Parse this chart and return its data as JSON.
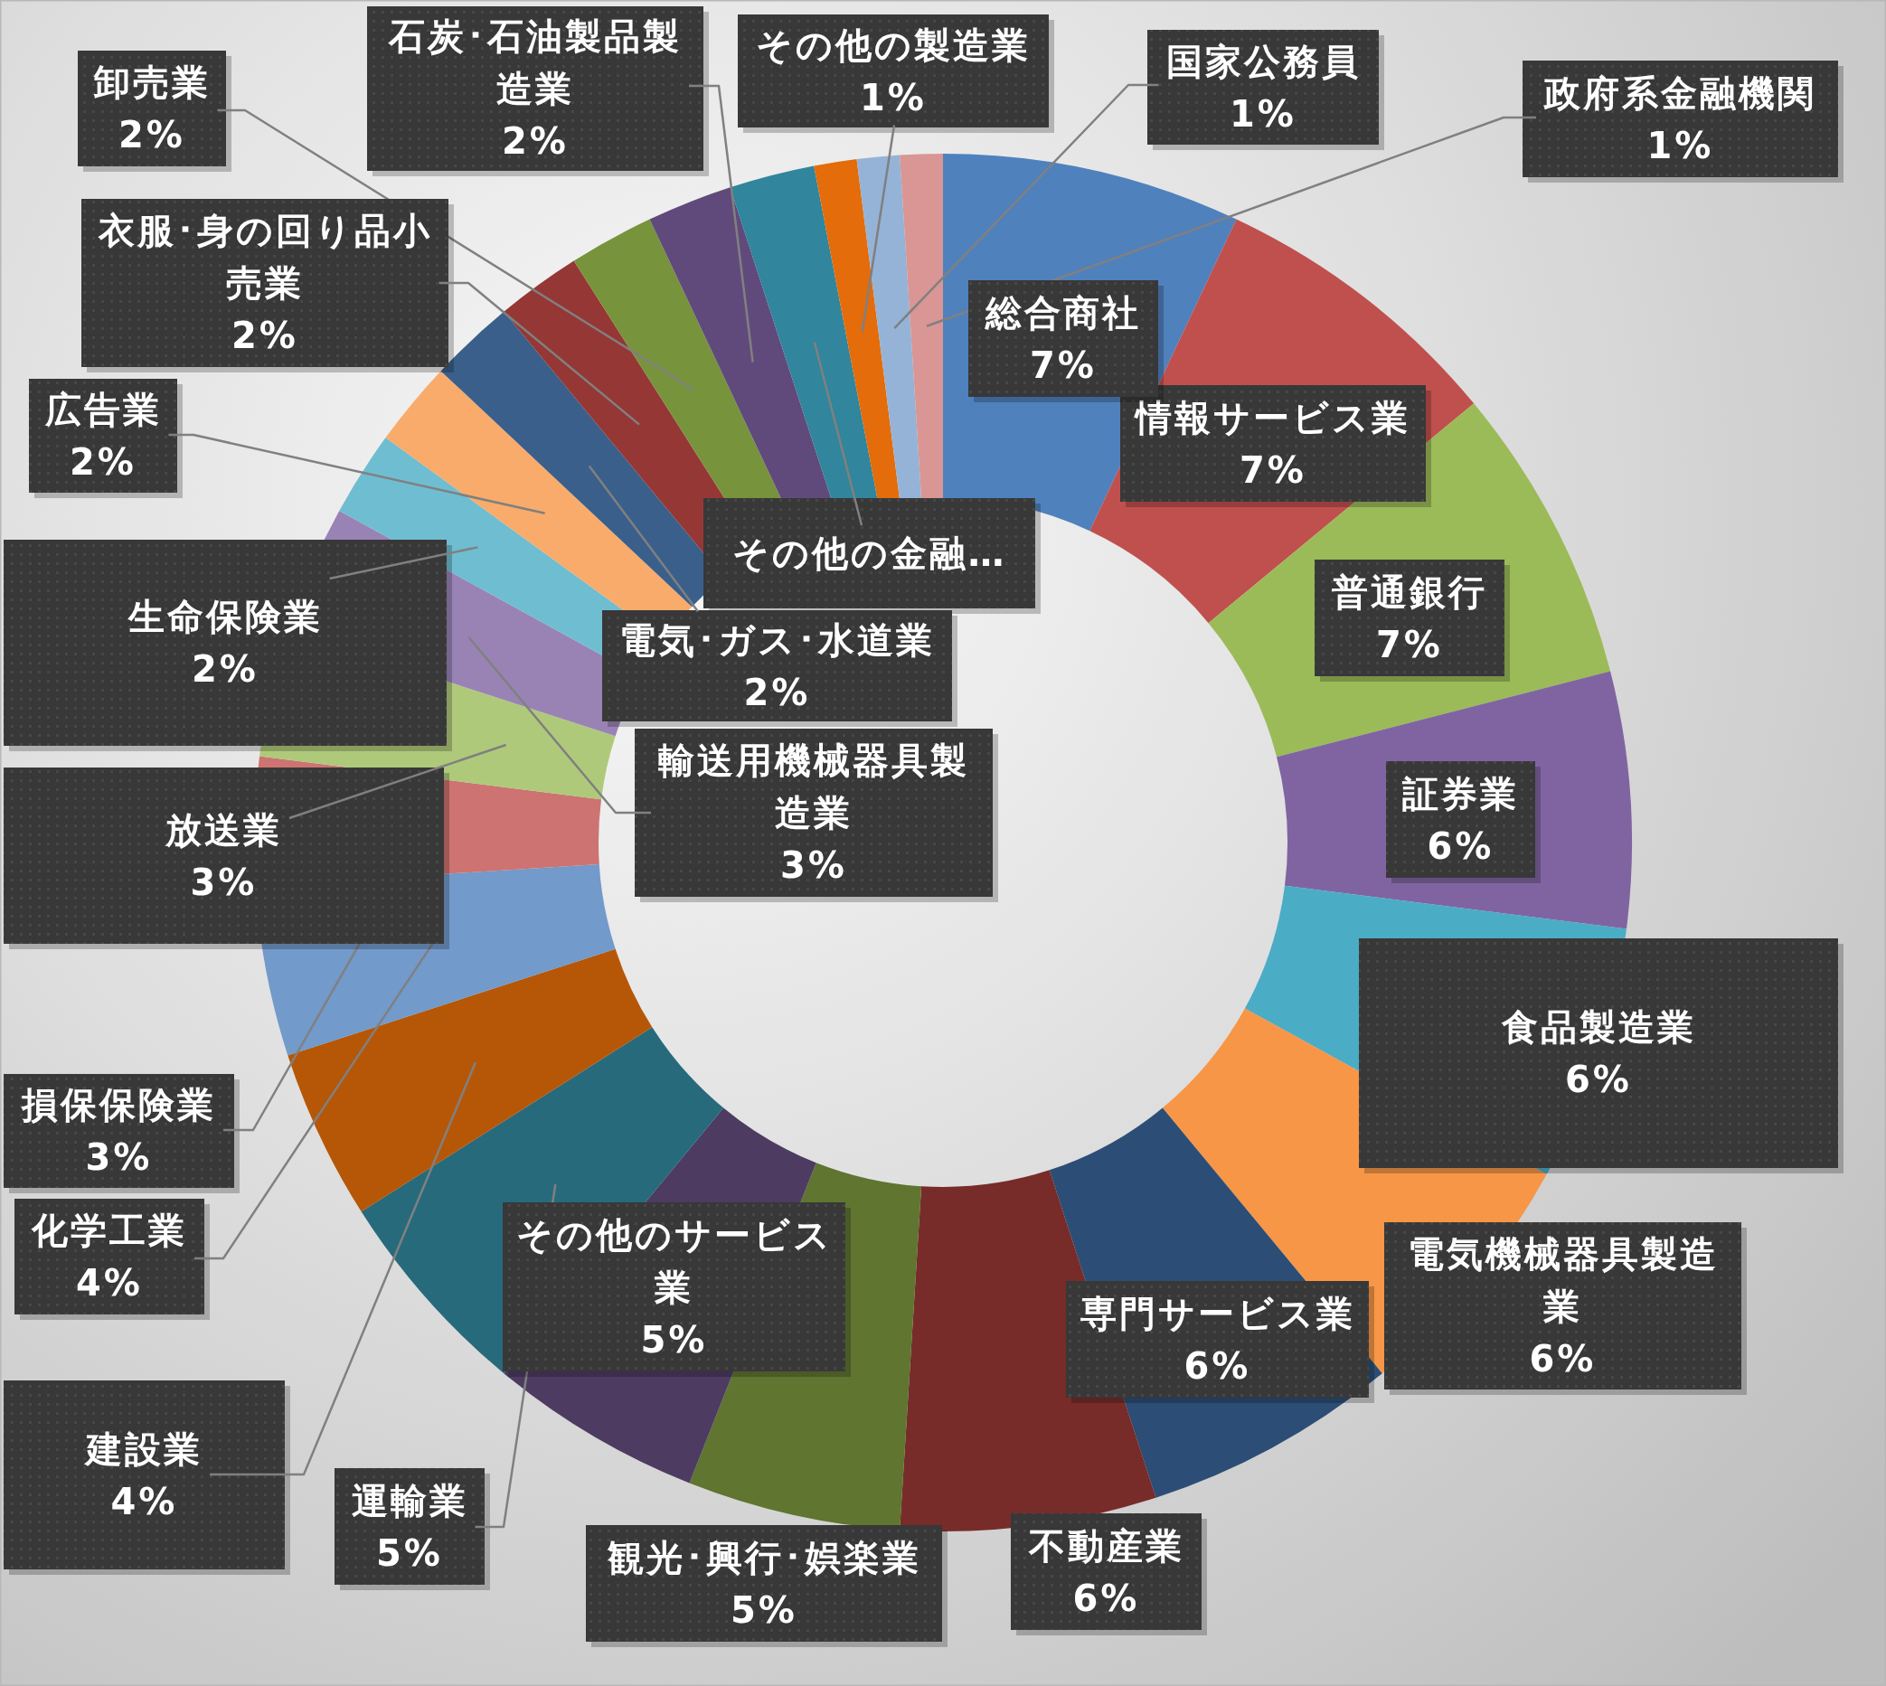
{
  "chart_data": {
    "type": "donut",
    "categories": [
      "総合商社",
      "情報サービス業",
      "普通銀行",
      "証券業",
      "食品製造業",
      "電気機械器具製造業",
      "専門サービス業",
      "不動産業",
      "観光･興行･娯楽業",
      "その他のサービス業",
      "運輸業",
      "建設業",
      "化学工業",
      "損保保険業",
      "放送業",
      "輸送用機械器具製造業",
      "生命保険業",
      "広告業",
      "電気･ガス･水道業",
      "衣服･身の回り品小売業",
      "卸売業",
      "石炭･石油製品製造業",
      "その他の金融…",
      "その他の製造業",
      "国家公務員",
      "政府系金融機関"
    ],
    "values": [
      7,
      7,
      7,
      6,
      6,
      6,
      6,
      6,
      5,
      5,
      5,
      4,
      4,
      3,
      3,
      3,
      2,
      2,
      2,
      2,
      2,
      2,
      2,
      1,
      1,
      1
    ],
    "colors": [
      "#4f81bd",
      "#c0504d",
      "#9bbb59",
      "#8064a2",
      "#4bacc6",
      "#f79646",
      "#2c4d75",
      "#772c2a",
      "#5f7530",
      "#4d3b62",
      "#276a7c",
      "#b65708",
      "#729aca",
      "#cd7371",
      "#afc97a",
      "#9983b5",
      "#6fbdd1",
      "#f9ab6b",
      "#3a5f8b",
      "#953735",
      "#77933c",
      "#604a7b",
      "#31859c",
      "#e46c0a",
      "#95b3d7",
      "#d99694"
    ],
    "value_labels": [
      "7%",
      "7%",
      "7%",
      "6%",
      "6%",
      "6%",
      "6%",
      "6%",
      "5%",
      "5%",
      "5%",
      "4%",
      "4%",
      "3%",
      "3%",
      "3%",
      "2%",
      "2%",
      "2%",
      "2%",
      "2%",
      "2%",
      null,
      "1%",
      "1%",
      "1%"
    ]
  }
}
